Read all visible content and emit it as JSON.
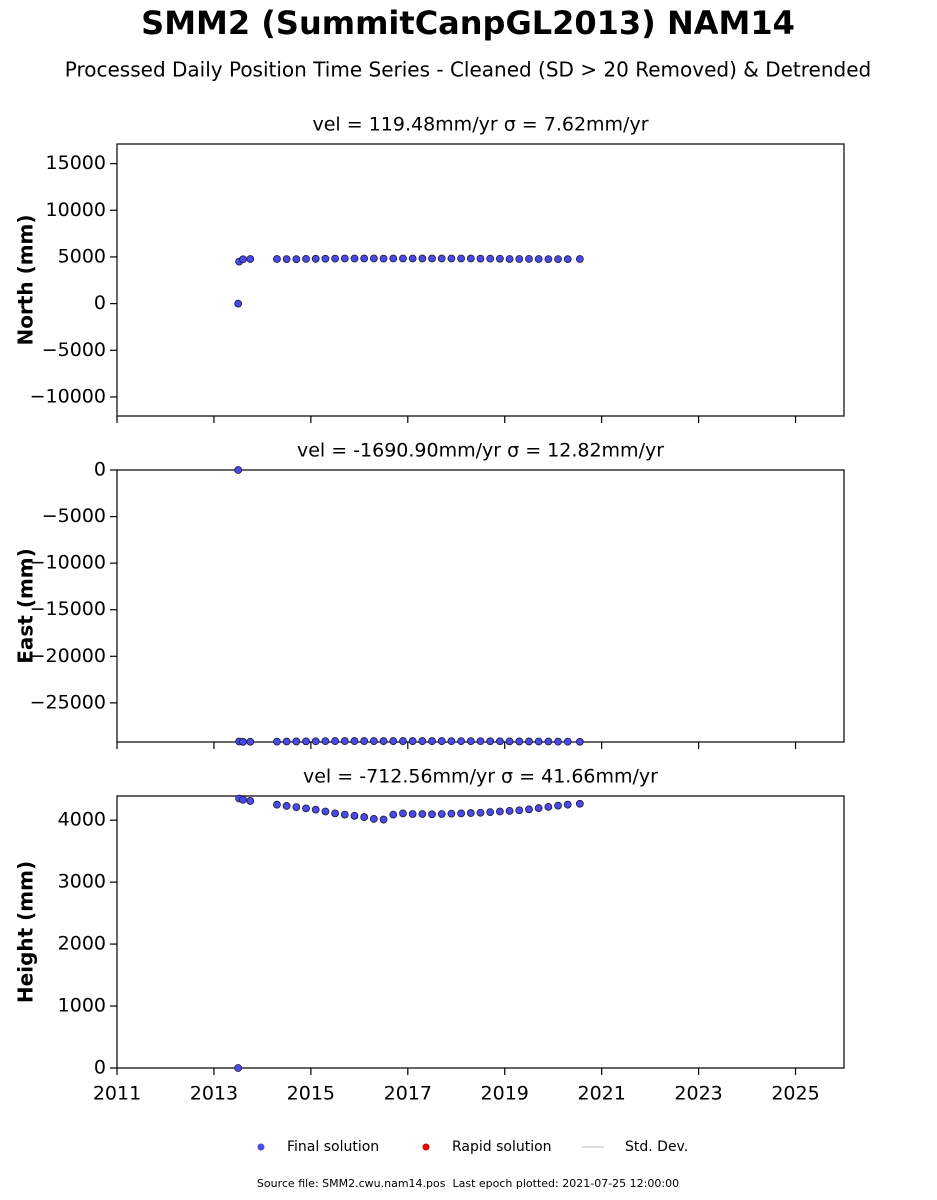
{
  "title": "SMM2 (SummitCanpGL2013) NAM14",
  "subtitle": "Processed Daily Position Time Series - Cleaned (SD > 20 Removed) & Detrended",
  "legend": [
    {
      "name": "Final solution",
      "color": "#4a4ae6",
      "marker": "circle"
    },
    {
      "name": "Rapid solution",
      "color": "#e00000",
      "marker": "circle"
    },
    {
      "name": "Std. Dev.",
      "color": "#d0d0d0",
      "marker": "line"
    }
  ],
  "footer": "Source file: SMM2.cwu.nam14.pos  Last epoch plotted: 2021-07-25 12:00:00",
  "chart_data": [
    {
      "type": "scatter",
      "title": "vel = 119.48mm/yr   σ = 7.62mm/yr",
      "ylabel": "North (mm)",
      "x": [
        2013.5,
        2013.52,
        2013.6,
        2013.75,
        2014.3,
        2014.5,
        2014.7,
        2014.9,
        2015.1,
        2015.3,
        2015.5,
        2015.7,
        2015.9,
        2016.1,
        2016.3,
        2016.5,
        2016.7,
        2016.9,
        2017.1,
        2017.3,
        2017.5,
        2017.7,
        2017.9,
        2018.1,
        2018.3,
        2018.5,
        2018.7,
        2018.9,
        2019.1,
        2019.3,
        2019.5,
        2019.7,
        2019.9,
        2020.1,
        2020.3,
        2020.55
      ],
      "series": [
        {
          "color": "#4a4ae6",
          "values": [
            0,
            4500,
            4750,
            4780,
            4780,
            4770,
            4760,
            4790,
            4800,
            4810,
            4820,
            4830,
            4830,
            4830,
            4830,
            4820,
            4830,
            4830,
            4830,
            4830,
            4830,
            4830,
            4830,
            4830,
            4830,
            4820,
            4820,
            4810,
            4780,
            4780,
            4790,
            4780,
            4770,
            4770,
            4770,
            4780
          ]
        }
      ],
      "xlim": [
        2011,
        2026
      ],
      "xticks": [
        2011,
        2013,
        2015,
        2017,
        2019,
        2021,
        2023,
        2025
      ],
      "ylim": [
        -12040,
        17100
      ],
      "yticks": [
        {
          "value": -10000,
          "label": "−10000"
        },
        {
          "value": -5000,
          "label": "−5000"
        },
        0,
        5000,
        10000,
        15000
      ]
    },
    {
      "type": "scatter",
      "title": "vel = -1690.90mm/yr   σ = 12.82mm/yr",
      "ylabel": "East (mm)",
      "x": [
        2013.5,
        2013.52,
        2013.6,
        2013.75,
        2014.3,
        2014.5,
        2014.7,
        2014.9,
        2015.1,
        2015.3,
        2015.5,
        2015.7,
        2015.9,
        2016.1,
        2016.3,
        2016.5,
        2016.7,
        2016.9,
        2017.1,
        2017.3,
        2017.5,
        2017.7,
        2017.9,
        2018.1,
        2018.3,
        2018.5,
        2018.7,
        2018.9,
        2019.1,
        2019.3,
        2019.5,
        2019.7,
        2019.9,
        2020.1,
        2020.3,
        2020.55
      ],
      "series": [
        {
          "color": "#4a4ae6",
          "values": [
            0,
            -29150,
            -29180,
            -29170,
            -29160,
            -29150,
            -29140,
            -29130,
            -29120,
            -29110,
            -29100,
            -29100,
            -29100,
            -29100,
            -29100,
            -29100,
            -29100,
            -29100,
            -29100,
            -29100,
            -29100,
            -29100,
            -29110,
            -29110,
            -29110,
            -29110,
            -29120,
            -29120,
            -29130,
            -29140,
            -29140,
            -29150,
            -29150,
            -29160,
            -29160,
            -29170
          ]
        }
      ],
      "xlim": [
        2011,
        2026
      ],
      "xticks": [
        2011,
        2013,
        2015,
        2017,
        2019,
        2021,
        2023,
        2025
      ],
      "ylim": [
        -29200,
        0
      ],
      "yticks": [
        {
          "value": -25000,
          "label": "−25000"
        },
        {
          "value": -20000,
          "label": "−20000"
        },
        {
          "value": -15000,
          "label": "−15000"
        },
        {
          "value": -10000,
          "label": "−10000"
        },
        {
          "value": -5000,
          "label": "−5000"
        },
        0
      ]
    },
    {
      "type": "scatter",
      "title": "vel = -712.56mm/yr   σ = 41.66mm/yr",
      "ylabel": "Height (mm)",
      "x": [
        2013.5,
        2013.52,
        2013.6,
        2013.75,
        2014.3,
        2014.5,
        2014.7,
        2014.9,
        2015.1,
        2015.3,
        2015.5,
        2015.7,
        2015.9,
        2016.1,
        2016.3,
        2016.5,
        2016.7,
        2016.9,
        2017.1,
        2017.3,
        2017.5,
        2017.7,
        2017.9,
        2018.1,
        2018.3,
        2018.5,
        2018.7,
        2018.9,
        2019.1,
        2019.3,
        2019.5,
        2019.7,
        2019.9,
        2020.1,
        2020.3,
        2020.55
      ],
      "series": [
        {
          "color": "#4a4ae6",
          "values": [
            0,
            4350,
            4330,
            4310,
            4250,
            4230,
            4210,
            4190,
            4170,
            4140,
            4110,
            4090,
            4070,
            4050,
            4020,
            4010,
            4090,
            4110,
            4100,
            4100,
            4095,
            4100,
            4105,
            4110,
            4115,
            4120,
            4130,
            4140,
            4150,
            4160,
            4175,
            4195,
            4215,
            4235,
            4250,
            4265
          ]
        }
      ],
      "xlim": [
        2011,
        2026
      ],
      "xticks": [
        2011,
        2013,
        2015,
        2017,
        2019,
        2021,
        2023,
        2025
      ],
      "ylim": [
        0,
        4390
      ],
      "yticks": [
        0,
        1000,
        2000,
        3000,
        4000
      ]
    }
  ]
}
